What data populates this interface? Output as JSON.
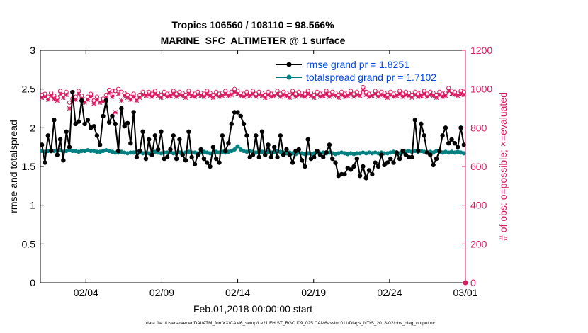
{
  "chart_data": {
    "type": "line",
    "title_line1": "Tropics 106560 / 108110 = 98.566%",
    "title_line2": "MARINE_SFC_ALTIMETER @ 1 surface",
    "xlabel": "Feb.01,2018 00:00:00 start",
    "ylabel_left": "rmse and totalspread",
    "ylabel_right": "# of obs: o=possible; ×=evaluated",
    "footnote": "data file: /Users/raeder/DAI/ATM_forcXX/CAM6_setup/f.e21.FHIST_BGC.f09_025.CAM6assim.011/Diags_NTrS_2018-02/obs_diag_output.nc",
    "xlim": [
      0,
      28
    ],
    "ylim_left": [
      0,
      3
    ],
    "ylim_right": [
      0,
      1200
    ],
    "x_tick_values": [
      3,
      8,
      13,
      18,
      23,
      28
    ],
    "x_tick_labels": [
      "02/04",
      "02/09",
      "02/14",
      "02/19",
      "02/24",
      "03/01"
    ],
    "y_left_ticks": [
      "0",
      "0.5",
      "1",
      "1.5",
      "2",
      "2.5",
      "3"
    ],
    "y_right_ticks": [
      "0",
      "200",
      "400",
      "600",
      "800",
      "1000",
      "1200"
    ],
    "legend": [
      "rmse grand pr = 1.8251",
      "totalspread grand pr = 1.7102"
    ],
    "colors": {
      "rmse": "#000000",
      "spread": "#008080",
      "obs": "#d81b60",
      "legend_text": "#0047e0",
      "right_axis": "#d81b60"
    },
    "series": [
      {
        "name": "rmse",
        "axis": "left",
        "values": [
          1.78,
          1.55,
          1.9,
          1.7,
          2.1,
          1.65,
          1.85,
          1.58,
          1.95,
          1.75,
          2.46,
          2.05,
          2.08,
          2.35,
          2.05,
          2.1,
          2.0,
          2.02,
          1.9,
          1.78,
          2.15,
          2.35,
          2.07,
          2.15,
          2.05,
          1.7,
          2.25,
          2.02,
          2.06,
          1.8,
          2.2,
          1.62,
          1.7,
          1.95,
          1.6,
          1.85,
          1.65,
          1.9,
          1.72,
          1.95,
          1.6,
          1.62,
          1.72,
          1.9,
          1.6,
          1.85,
          1.65,
          1.58,
          1.95,
          1.62,
          1.53,
          1.65,
          1.72,
          1.6,
          1.55,
          1.5,
          1.75,
          1.6,
          1.55,
          1.9,
          1.7,
          1.8,
          2.05,
          2.2,
          2.2,
          2.15,
          2.05,
          1.9,
          1.62,
          1.65,
          1.9,
          1.62,
          1.95,
          1.65,
          1.78,
          1.62,
          1.75,
          1.62,
          1.9,
          1.65,
          1.72,
          1.65,
          1.55,
          1.7,
          1.72,
          1.58,
          1.5,
          1.85,
          1.6,
          1.62,
          1.7,
          1.65,
          1.62,
          1.68,
          1.78,
          1.6,
          1.55,
          1.38,
          1.4,
          1.4,
          1.48,
          1.46,
          1.5,
          1.6,
          1.38,
          1.5,
          1.35,
          1.45,
          1.4,
          1.55,
          1.5,
          1.65,
          1.52,
          1.55,
          1.6,
          1.55,
          1.68,
          1.6,
          1.7,
          1.65,
          1.62,
          1.62,
          2.1,
          1.7,
          2.05,
          1.9,
          1.68,
          1.65,
          1.52,
          1.6,
          1.7,
          1.9,
          2.0,
          1.8,
          1.85,
          1.8,
          1.75,
          2.0,
          1.78
        ]
      },
      {
        "name": "totalspread",
        "axis": "left",
        "values": [
          1.7,
          1.69,
          1.7,
          1.71,
          1.7,
          1.7,
          1.71,
          1.69,
          1.7,
          1.71,
          1.7,
          1.7,
          1.69,
          1.7,
          1.7,
          1.71,
          1.7,
          1.7,
          1.69,
          1.69,
          1.7,
          1.71,
          1.7,
          1.69,
          1.68,
          1.68,
          1.69,
          1.68,
          1.67,
          1.68,
          1.68,
          1.69,
          1.68,
          1.67,
          1.68,
          1.67,
          1.68,
          1.69,
          1.68,
          1.67,
          1.68,
          1.68,
          1.69,
          1.67,
          1.68,
          1.68,
          1.67,
          1.68,
          1.69,
          1.68,
          1.68,
          1.67,
          1.68,
          1.69,
          1.68,
          1.67,
          1.68,
          1.69,
          1.68,
          1.69,
          1.68,
          1.69,
          1.7,
          1.72,
          1.76,
          1.72,
          1.7,
          1.69,
          1.7,
          1.69,
          1.68,
          1.68,
          1.69,
          1.68,
          1.69,
          1.68,
          1.69,
          1.7,
          1.69,
          1.68,
          1.67,
          1.68,
          1.67,
          1.66,
          1.68,
          1.67,
          1.66,
          1.67,
          1.66,
          1.67,
          1.68,
          1.67,
          1.68,
          1.67,
          1.68,
          1.67,
          1.66,
          1.67,
          1.68,
          1.67,
          1.66,
          1.67,
          1.66,
          1.67,
          1.67,
          1.68,
          1.67,
          1.68,
          1.67,
          1.68,
          1.67,
          1.68,
          1.67,
          1.67,
          1.68,
          1.69,
          1.68,
          1.67,
          1.68,
          1.69,
          1.7,
          1.69,
          1.7,
          1.69,
          1.7,
          1.69,
          1.68,
          1.69,
          1.68,
          1.7,
          1.69,
          1.68,
          1.69,
          1.68,
          1.69,
          1.68,
          1.69,
          1.68,
          1.67
        ]
      },
      {
        "name": "obs_possible",
        "axis": "right",
        "marker": "o",
        "values": [
          970,
          975,
          960,
          980,
          965,
          955,
          990,
          970,
          985,
          930,
          950,
          960,
          990,
          965,
          945,
          960,
          975,
          940,
          960,
          945,
          950,
          970,
          995,
          990,
          990,
          1000,
          985,
          980,
          970,
          960,
          975,
          955,
          970,
          985,
          980,
          985,
          975,
          990,
          980,
          970,
          985,
          975,
          980,
          990,
          975,
          985,
          980,
          970,
          990,
          980,
          975,
          985,
          980,
          975,
          990,
          980,
          970,
          985,
          975,
          980,
          990,
          980,
          985,
          1000,
          990,
          980,
          975,
          985,
          980,
          990,
          975,
          985,
          980,
          970,
          985,
          975,
          980,
          990,
          975,
          985,
          980,
          970,
          990,
          975,
          985,
          980,
          975,
          990,
          980,
          970,
          985,
          975,
          980,
          990,
          975,
          985,
          980,
          970,
          985,
          975,
          980,
          990,
          975,
          985,
          980,
          1010,
          985,
          975,
          980,
          990,
          975,
          985,
          980,
          970,
          985,
          975,
          980,
          990,
          975,
          985,
          980,
          970,
          985,
          975,
          980,
          990,
          975,
          985,
          980,
          970,
          985,
          975,
          980,
          1005,
          990,
          985,
          980,
          990,
          985
        ]
      },
      {
        "name": "obs_evaluated",
        "axis": "right",
        "marker": "x",
        "values": [
          955,
          960,
          945,
          965,
          950,
          940,
          975,
          955,
          970,
          900,
          935,
          945,
          975,
          950,
          930,
          945,
          960,
          925,
          945,
          930,
          935,
          955,
          980,
          960,
          880,
          975,
          940,
          965,
          955,
          945,
          960,
          940,
          955,
          970,
          965,
          970,
          960,
          975,
          965,
          955,
          970,
          960,
          965,
          975,
          960,
          970,
          965,
          955,
          975,
          965,
          960,
          970,
          965,
          960,
          975,
          965,
          955,
          970,
          960,
          965,
          975,
          965,
          970,
          985,
          975,
          965,
          960,
          970,
          965,
          975,
          960,
          970,
          965,
          955,
          970,
          960,
          965,
          975,
          960,
          970,
          965,
          955,
          975,
          960,
          970,
          965,
          960,
          975,
          965,
          955,
          970,
          960,
          965,
          975,
          960,
          970,
          965,
          955,
          970,
          960,
          965,
          975,
          960,
          970,
          965,
          995,
          970,
          960,
          965,
          975,
          960,
          970,
          965,
          955,
          970,
          960,
          965,
          975,
          960,
          970,
          965,
          955,
          970,
          960,
          965,
          975,
          960,
          970,
          965,
          955,
          970,
          960,
          965,
          990,
          975,
          970,
          965,
          975,
          970
        ]
      }
    ],
    "final_obs_point": {
      "x": 28,
      "y": 0
    }
  }
}
